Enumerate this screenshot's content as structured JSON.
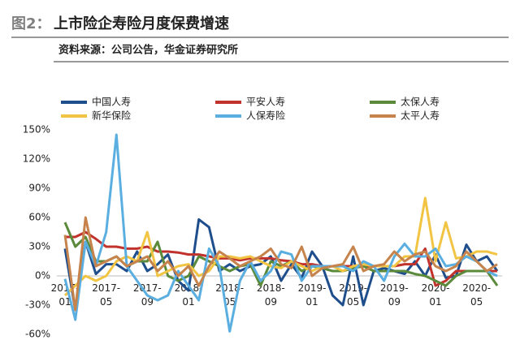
{
  "chart_data": {
    "type": "line",
    "figure_label": "图2：",
    "title": "上市险企寿险月度保费增速",
    "source": "资料来源：公司公告，华金证券研究所",
    "categories": [
      "2017-01",
      null,
      null,
      null,
      "2017-05",
      null,
      null,
      null,
      "2017-09",
      null,
      null,
      null,
      "2018-01",
      null,
      null,
      null,
      "2018-05",
      null,
      null,
      null,
      "2018-09",
      null,
      null,
      null,
      "2019-01",
      null,
      null,
      null,
      "2019-05",
      null,
      null,
      null,
      "2019-09",
      null,
      null,
      null,
      "2020-01",
      null,
      null,
      null,
      "2020-05",
      null,
      null
    ],
    "ylim": [
      -60,
      150
    ],
    "yticks": [
      {
        "value": -60,
        "label": "-60%"
      },
      {
        "value": -30,
        "label": "-30%"
      },
      {
        "value": 0,
        "label": "0%"
      },
      {
        "value": 30,
        "label": "30%"
      },
      {
        "value": 60,
        "label": "60%"
      },
      {
        "value": 90,
        "label": "90%"
      },
      {
        "value": 120,
        "label": "120%"
      },
      {
        "value": 150,
        "label": "150%"
      }
    ],
    "grid": false,
    "legend": "top",
    "series": [
      {
        "name": "中国人寿",
        "color": "#1f4e8c",
        "values": [
          28,
          -35,
          35,
          2,
          12,
          12,
          5,
          25,
          5,
          12,
          22,
          -5,
          -15,
          58,
          50,
          5,
          12,
          5,
          10,
          12,
          20,
          -5,
          12,
          -2,
          25,
          10,
          -20,
          -30,
          20,
          -30,
          5,
          8,
          5,
          2,
          15,
          0,
          22,
          -2,
          0,
          32,
          15,
          20,
          5
        ]
      },
      {
        "name": "平安人寿",
        "color": "#c0322b",
        "values": [
          40,
          40,
          45,
          38,
          30,
          30,
          28,
          28,
          30,
          25,
          25,
          24,
          22,
          22,
          20,
          18,
          18,
          16,
          18,
          18,
          18,
          16,
          15,
          12,
          12,
          10,
          10,
          10,
          10,
          10,
          10,
          10,
          10,
          12,
          12,
          28,
          -10,
          -5,
          5,
          5,
          5,
          5,
          5
        ]
      },
      {
        "name": "太保人寿",
        "color": "#5a8a3a",
        "values": [
          55,
          30,
          40,
          15,
          15,
          20,
          10,
          15,
          15,
          35,
          0,
          -5,
          0,
          20,
          15,
          10,
          5,
          10,
          12,
          -10,
          15,
          10,
          15,
          5,
          10,
          8,
          5,
          5,
          8,
          10,
          5,
          5,
          5,
          5,
          2,
          0,
          -5,
          -10,
          0,
          5,
          5,
          5,
          -10
        ]
      },
      {
        "name": "新华保险",
        "color": "#f2c443",
        "values": [
          -20,
          -10,
          0,
          -5,
          0,
          15,
          20,
          15,
          45,
          0,
          5,
          10,
          12,
          0,
          5,
          20,
          20,
          18,
          20,
          15,
          10,
          8,
          15,
          10,
          5,
          10,
          10,
          5,
          10,
          12,
          10,
          10,
          10,
          20,
          20,
          80,
          15,
          55,
          18,
          20,
          25,
          25,
          22
        ]
      },
      {
        "name": "人保寿险",
        "color": "#5aaee0",
        "values": [
          -3,
          -45,
          35,
          10,
          45,
          145,
          10,
          -5,
          -20,
          -25,
          -20,
          5,
          -10,
          -25,
          28,
          10,
          -57,
          -5,
          15,
          -5,
          5,
          25,
          22,
          -5,
          10,
          10,
          10,
          10,
          5,
          15,
          10,
          -5,
          20,
          33,
          20,
          20,
          28,
          10,
          12,
          20,
          15,
          5,
          0
        ]
      },
      {
        "name": "太平人寿",
        "color": "#c6834c",
        "values": [
          42,
          -35,
          60,
          10,
          15,
          20,
          10,
          15,
          20,
          5,
          15,
          0,
          10,
          -10,
          10,
          25,
          18,
          10,
          15,
          20,
          28,
          12,
          8,
          30,
          0,
          8,
          10,
          12,
          30,
          5,
          10,
          12,
          25,
          15,
          22,
          25,
          10,
          5,
          10,
          25,
          15,
          5,
          12
        ]
      }
    ]
  }
}
